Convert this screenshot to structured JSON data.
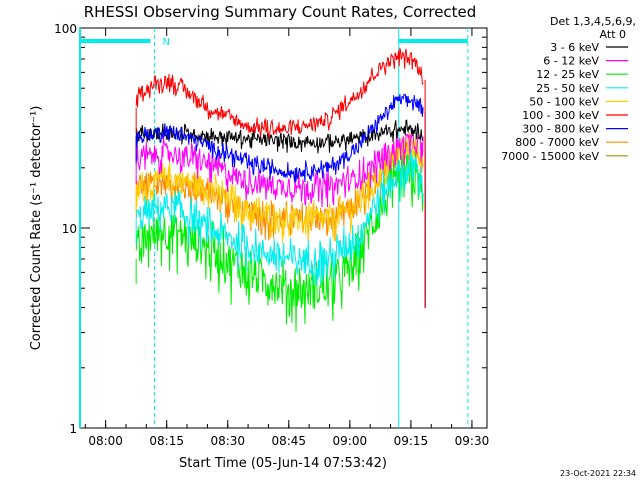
{
  "chart_data": {
    "type": "line",
    "title": "RHESSI Observing Summary Count Rates, Corrected",
    "ylabel": "Corrected Count Rate (s⁻¹ detector⁻¹)",
    "xlabel": "Start Time (05-Jun-14 07:53:42)",
    "footer_date": "23-Oct-2021 22:34",
    "y_scale": "log",
    "ylim": [
      1,
      100
    ],
    "y_ticks": [
      1,
      10,
      100
    ],
    "y_tick_labels": [
      "1",
      "10",
      "100"
    ],
    "x_range": [
      "07:53:42",
      "09:33:42"
    ],
    "x_ticks": [
      "08:00",
      "08:15",
      "08:30",
      "08:45",
      "09:00",
      "09:15",
      "09:30"
    ],
    "legend_header": [
      "Det 1,3,4,5,6,9,",
      "Att 0"
    ],
    "legend_placement": "right",
    "grid": false,
    "night_flag_label": "N",
    "data_start": "08:07:30",
    "data_end": "09:18:00",
    "shading": {
      "night_end": "08:12:00",
      "day_start": "09:12:00",
      "saa_end": "09:29:00"
    },
    "series": [
      {
        "name": "3 - 6 keV",
        "color": "#000000",
        "times": [
          "08:07:30",
          "08:15:00",
          "08:25:00",
          "08:35:00",
          "08:45:00",
          "08:55:00",
          "09:02:00",
          "09:08:00",
          "09:12:00",
          "09:16:00",
          "09:18:00"
        ],
        "values": [
          29,
          30,
          29,
          28,
          27,
          27,
          28,
          30,
          31,
          31,
          29
        ]
      },
      {
        "name": "6 - 12 keV",
        "color": "#ff00ff",
        "times": [
          "08:07:30",
          "08:15:00",
          "08:25:00",
          "08:35:00",
          "08:45:00",
          "08:55:00",
          "09:02:00",
          "09:08:00",
          "09:12:00",
          "09:16:00",
          "09:18:00"
        ],
        "values": [
          22,
          24,
          21,
          17,
          16,
          16,
          18,
          22,
          26,
          27,
          24
        ]
      },
      {
        "name": "12 - 25 keV",
        "color": "#00ee00",
        "times": [
          "08:07:30",
          "08:10:00",
          "08:15:00",
          "08:25:00",
          "08:35:00",
          "08:45:00",
          "08:55:00",
          "09:02:00",
          "09:08:00",
          "09:12:00",
          "09:16:00",
          "09:18:00"
        ],
        "values": [
          7,
          9,
          10,
          8,
          6,
          5,
          5,
          7,
          13,
          17,
          18,
          15
        ]
      },
      {
        "name": "25 - 50 keV",
        "color": "#00eeee",
        "times": [
          "08:07:30",
          "08:10:00",
          "08:15:00",
          "08:25:00",
          "08:35:00",
          "08:45:00",
          "08:55:00",
          "09:02:00",
          "09:08:00",
          "09:12:00",
          "09:16:00",
          "09:18:00"
        ],
        "values": [
          11,
          12,
          13,
          10,
          8,
          7,
          7,
          9,
          15,
          19,
          20,
          17
        ]
      },
      {
        "name": "50 - 100 keV",
        "color": "#ffcc00",
        "times": [
          "08:07:30",
          "08:15:00",
          "08:25:00",
          "08:35:00",
          "08:45:00",
          "08:55:00",
          "09:02:00",
          "09:08:00",
          "09:12:00",
          "09:16:00",
          "09:18:00"
        ],
        "values": [
          15,
          18,
          16,
          12,
          11,
          11,
          13,
          19,
          25,
          26,
          22
        ]
      },
      {
        "name": "100 - 300 keV",
        "color": "#ff0000",
        "times": [
          "08:07:30",
          "08:08:30",
          "08:15:00",
          "08:20:00",
          "08:25:00",
          "08:35:00",
          "08:45:00",
          "08:55:00",
          "09:02:00",
          "09:08:00",
          "09:12:00",
          "09:16:00",
          "09:18:00"
        ],
        "values": [
          40,
          48,
          55,
          48,
          40,
          32,
          31,
          35,
          47,
          65,
          73,
          68,
          55
        ]
      },
      {
        "name": "300 - 800 keV",
        "color": "#0000ff",
        "times": [
          "08:07:30",
          "08:15:00",
          "08:25:00",
          "08:35:00",
          "08:45:00",
          "08:55:00",
          "09:02:00",
          "09:08:00",
          "09:12:00",
          "09:16:00",
          "09:18:00"
        ],
        "values": [
          28,
          31,
          26,
          21,
          19,
          20,
          25,
          36,
          44,
          43,
          38
        ]
      },
      {
        "name": "800 - 7000 keV",
        "color": "#ff8800",
        "times": [
          "08:07:30",
          "08:15:00",
          "08:25:00",
          "08:35:00",
          "08:45:00",
          "08:55:00",
          "09:02:00",
          "09:08:00",
          "09:12:00",
          "09:16:00",
          "09:18:00"
        ],
        "values": [
          16,
          17,
          15,
          12,
          11,
          11,
          13,
          19,
          24,
          25,
          22
        ]
      },
      {
        "name": "7000 - 15000 keV",
        "color": "#999900",
        "times": [],
        "values": []
      }
    ]
  }
}
